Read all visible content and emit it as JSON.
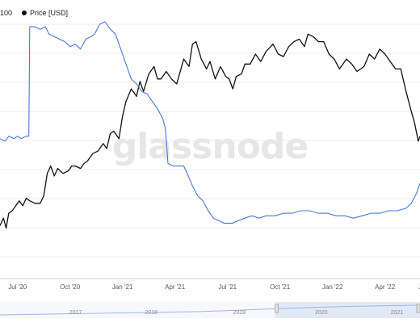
{
  "legend": {
    "left_label": "100",
    "price_label": "Price [USD]"
  },
  "watermark": "glassnode",
  "colors": {
    "price": "#111111",
    "metric": "#4a78d6",
    "grid": "#ececec",
    "tick": "#555555",
    "watermark": "#e6e6e6"
  },
  "chart_data": {
    "type": "line",
    "x_unit": "months since Jun 2020",
    "xlim": [
      0.0,
      24.0
    ],
    "xticks": [
      {
        "x": 1.0,
        "label": "Jul '20"
      },
      {
        "x": 4.0,
        "label": "Oct '20"
      },
      {
        "x": 7.0,
        "label": "Jan '21"
      },
      {
        "x": 10.0,
        "label": "Apr '21"
      },
      {
        "x": 13.0,
        "label": "Jul '21"
      },
      {
        "x": 16.0,
        "label": "Oct '21"
      },
      {
        "x": 19.0,
        "label": "Jan '22"
      },
      {
        "x": 22.0,
        "label": "Apr '22"
      },
      {
        "x": 24.0,
        "label": "J"
      }
    ],
    "y_relative": true,
    "ylim": [
      0,
      1
    ],
    "series": [
      {
        "name": "Price [USD]",
        "points": [
          [
            0.0,
            0.19
          ],
          [
            0.2,
            0.22
          ],
          [
            0.35,
            0.18
          ],
          [
            0.5,
            0.24
          ],
          [
            0.7,
            0.25
          ],
          [
            0.9,
            0.27
          ],
          [
            1.1,
            0.29
          ],
          [
            1.3,
            0.27
          ],
          [
            1.5,
            0.3
          ],
          [
            1.7,
            0.29
          ],
          [
            2.0,
            0.28
          ],
          [
            2.3,
            0.28
          ],
          [
            2.5,
            0.31
          ],
          [
            2.7,
            0.4
          ],
          [
            2.9,
            0.43
          ],
          [
            3.1,
            0.39
          ],
          [
            3.3,
            0.42
          ],
          [
            3.6,
            0.4
          ],
          [
            3.9,
            0.41
          ],
          [
            4.1,
            0.43
          ],
          [
            4.3,
            0.43
          ],
          [
            4.6,
            0.42
          ],
          [
            4.8,
            0.44
          ],
          [
            5.0,
            0.45
          ],
          [
            5.3,
            0.48
          ],
          [
            5.6,
            0.49
          ],
          [
            5.9,
            0.52
          ],
          [
            6.1,
            0.5
          ],
          [
            6.3,
            0.56
          ],
          [
            6.5,
            0.57
          ],
          [
            6.8,
            0.54
          ],
          [
            7.0,
            0.63
          ],
          [
            7.2,
            0.69
          ],
          [
            7.5,
            0.74
          ],
          [
            7.8,
            0.71
          ],
          [
            8.0,
            0.77
          ],
          [
            8.2,
            0.73
          ],
          [
            8.5,
            0.8
          ],
          [
            8.8,
            0.83
          ],
          [
            9.0,
            0.78
          ],
          [
            9.2,
            0.78
          ],
          [
            9.5,
            0.81
          ],
          [
            9.8,
            0.78
          ],
          [
            10.1,
            0.76
          ],
          [
            10.5,
            0.86
          ],
          [
            10.8,
            0.83
          ],
          [
            11.0,
            0.92
          ],
          [
            11.2,
            0.93
          ],
          [
            11.5,
            0.86
          ],
          [
            11.8,
            0.82
          ],
          [
            12.0,
            0.85
          ],
          [
            12.3,
            0.78
          ],
          [
            12.6,
            0.83
          ],
          [
            12.9,
            0.79
          ],
          [
            13.1,
            0.78
          ],
          [
            13.3,
            0.74
          ],
          [
            13.5,
            0.79
          ],
          [
            13.8,
            0.8
          ],
          [
            14.0,
            0.84
          ],
          [
            14.3,
            0.84
          ],
          [
            14.6,
            0.88
          ],
          [
            14.9,
            0.85
          ],
          [
            15.2,
            0.89
          ],
          [
            15.6,
            0.92
          ],
          [
            15.9,
            0.88
          ],
          [
            16.2,
            0.87
          ],
          [
            16.5,
            0.91
          ],
          [
            16.8,
            0.93
          ],
          [
            17.1,
            0.94
          ],
          [
            17.4,
            0.91
          ],
          [
            17.6,
            0.96
          ],
          [
            17.9,
            0.95
          ],
          [
            18.2,
            0.93
          ],
          [
            18.5,
            0.93
          ],
          [
            18.8,
            0.88
          ],
          [
            19.1,
            0.86
          ],
          [
            19.4,
            0.82
          ],
          [
            19.8,
            0.86
          ],
          [
            20.1,
            0.84
          ],
          [
            20.4,
            0.81
          ],
          [
            20.8,
            0.83
          ],
          [
            21.1,
            0.88
          ],
          [
            21.4,
            0.86
          ],
          [
            21.7,
            0.9
          ],
          [
            22.0,
            0.88
          ],
          [
            22.3,
            0.85
          ],
          [
            22.6,
            0.82
          ],
          [
            22.9,
            0.82
          ],
          [
            23.2,
            0.73
          ],
          [
            23.5,
            0.65
          ],
          [
            23.7,
            0.6
          ],
          [
            23.9,
            0.53
          ],
          [
            24.0,
            0.55
          ]
        ]
      },
      {
        "name": "",
        "points": [
          [
            0.0,
            0.54
          ],
          [
            0.3,
            0.53
          ],
          [
            0.5,
            0.55
          ],
          [
            0.8,
            0.54
          ],
          [
            1.0,
            0.55
          ],
          [
            1.2,
            0.54
          ],
          [
            1.5,
            0.55
          ],
          [
            1.65,
            0.55
          ],
          [
            1.7,
            0.99
          ],
          [
            2.0,
            0.99
          ],
          [
            2.3,
            0.98
          ],
          [
            2.6,
            0.99
          ],
          [
            2.8,
            0.96
          ],
          [
            3.1,
            0.95
          ],
          [
            3.4,
            0.94
          ],
          [
            3.7,
            0.93
          ],
          [
            4.0,
            0.91
          ],
          [
            4.3,
            0.92
          ],
          [
            4.6,
            0.9
          ],
          [
            4.9,
            0.94
          ],
          [
            5.2,
            0.95
          ],
          [
            5.4,
            0.96
          ],
          [
            5.7,
            1.0
          ],
          [
            6.0,
            1.01
          ],
          [
            6.3,
            0.98
          ],
          [
            6.6,
            0.96
          ],
          [
            6.9,
            0.9
          ],
          [
            7.2,
            0.84
          ],
          [
            7.5,
            0.78
          ],
          [
            7.8,
            0.76
          ],
          [
            8.1,
            0.73
          ],
          [
            8.4,
            0.72
          ],
          [
            8.7,
            0.69
          ],
          [
            9.0,
            0.66
          ],
          [
            9.3,
            0.62
          ],
          [
            9.45,
            0.58
          ],
          [
            9.6,
            0.44
          ],
          [
            9.9,
            0.43
          ],
          [
            10.2,
            0.43
          ],
          [
            10.5,
            0.43
          ],
          [
            10.7,
            0.4
          ],
          [
            11.0,
            0.35
          ],
          [
            11.3,
            0.31
          ],
          [
            11.6,
            0.29
          ],
          [
            11.9,
            0.25
          ],
          [
            12.2,
            0.22
          ],
          [
            12.5,
            0.21
          ],
          [
            12.8,
            0.2
          ],
          [
            13.0,
            0.2
          ],
          [
            13.3,
            0.2
          ],
          [
            13.6,
            0.21
          ],
          [
            14.0,
            0.22
          ],
          [
            14.4,
            0.23
          ],
          [
            14.8,
            0.22
          ],
          [
            15.2,
            0.23
          ],
          [
            15.7,
            0.23
          ],
          [
            16.2,
            0.24
          ],
          [
            16.7,
            0.24
          ],
          [
            17.2,
            0.25
          ],
          [
            17.7,
            0.25
          ],
          [
            18.2,
            0.24
          ],
          [
            18.7,
            0.24
          ],
          [
            19.2,
            0.23
          ],
          [
            19.7,
            0.23
          ],
          [
            20.2,
            0.22
          ],
          [
            20.7,
            0.23
          ],
          [
            21.2,
            0.24
          ],
          [
            21.7,
            0.24
          ],
          [
            22.2,
            0.25
          ],
          [
            22.7,
            0.25
          ],
          [
            23.2,
            0.26
          ],
          [
            23.5,
            0.28
          ],
          [
            23.8,
            0.32
          ],
          [
            24.0,
            0.36
          ]
        ]
      }
    ],
    "navigator": {
      "labels": [
        "2017",
        "2018",
        "2019",
        "2020",
        "2021"
      ],
      "label_positions": [
        0.18,
        0.36,
        0.57,
        0.765,
        0.945
      ],
      "handle_positions": [
        0.655,
        1.0
      ]
    }
  }
}
